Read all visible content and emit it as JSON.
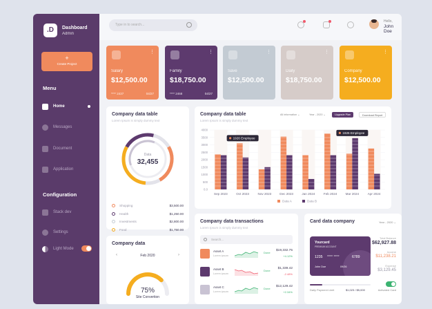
{
  "sidebar": {
    "logo_letter": ".D",
    "title": "Dashboard",
    "subtitle": "Admin",
    "create_plus": "+",
    "create_label": "Create Project",
    "menu_title": "Menu",
    "items": [
      {
        "label": "Home",
        "icon": "home-icon",
        "active": true
      },
      {
        "label": "Messages",
        "icon": "messages-icon"
      },
      {
        "label": "Document",
        "icon": "document-icon"
      },
      {
        "label": "Application",
        "icon": "application-icon"
      }
    ],
    "config_title": "Configuration",
    "config_items": [
      {
        "label": "Stack dev",
        "icon": "stack-icon"
      },
      {
        "label": "Settings",
        "icon": "settings-icon"
      },
      {
        "label": "Light Mode",
        "icon": "light-mode-icon"
      }
    ]
  },
  "topbar": {
    "search_placeholder": "Type in to search...",
    "hello": "Hello,",
    "user_name": "John Doe"
  },
  "cards": [
    {
      "name": "Salary",
      "amount": "$12,500.00",
      "number": "**** 2437",
      "expiry": "04/27",
      "color": "#f08a5d"
    },
    {
      "name": "Family",
      "amount": "$18,750.00",
      "number": "**** 2468",
      "expiry": "04/27",
      "color": "#5d3a6e"
    },
    {
      "name": "Save",
      "amount": "$12,500.00",
      "number": "",
      "expiry": "",
      "color": "#c3cbd3"
    },
    {
      "name": "Daily",
      "amount": "$18,750.00",
      "number": "",
      "expiry": "",
      "color": "#d6ccc9"
    },
    {
      "name": "Company",
      "amount": "$12,500.00",
      "number": "",
      "expiry": "",
      "color": "#f5ad1f"
    }
  ],
  "donut_panel": {
    "title": "Company data table",
    "subtitle": "Lorem Ipsum is simply dummy text",
    "center_label": "Data",
    "center_value": "32,455",
    "legend": [
      {
        "name": "Shopping",
        "value": "$3,500.00",
        "color": "#f08a5d"
      },
      {
        "name": "Health",
        "value": "$1,250.00",
        "color": "#5d3a6e"
      },
      {
        "name": "Investments",
        "value": "$2,800.00",
        "color": "#c3cbd3"
      },
      {
        "name": "Food",
        "value": "$1,750.00",
        "color": "#f5ad1f"
      },
      {
        "name": "Other",
        "value": "$1,000.00",
        "color": "#d6ccc9"
      }
    ]
  },
  "bar_panel": {
    "title": "Company data table",
    "subtitle": "Lorem Ipsum is simply dummy text",
    "filter_all": "All information",
    "filter_year": "Year - 2020",
    "upgrade_label": "Upgrade Plan",
    "download_label": "Download Report",
    "tooltip": "1926 Employee"
  },
  "chart_data": {
    "type": "bar",
    "categories": [
      "Sep 2023",
      "Oct 2023",
      "Nov 2023",
      "Dec 2023",
      "Jan 2024",
      "Feb 2024",
      "Mar 2024",
      "Apr 2024"
    ],
    "y_ticks": [
      "4000",
      "3500",
      "3000",
      "2500",
      "2000",
      "1500",
      "1000",
      "500",
      "0.0"
    ],
    "ylim": [
      0,
      4000
    ],
    "series": [
      {
        "name": "Data A",
        "color": "#f08a5d",
        "values": [
          2350,
          3100,
          1350,
          3550,
          2300,
          3750,
          2400,
          2750
        ]
      },
      {
        "name": "Data B",
        "color": "#5d3a6e",
        "values": [
          2300,
          2150,
          1500,
          2300,
          700,
          2300,
          3450,
          1050
        ]
      }
    ],
    "tooltips": [
      "1926 Employee",
      "1926 Employee"
    ],
    "legend_position": "bottom",
    "grid": true
  },
  "site_panel": {
    "title": "Company data",
    "month": "Feb 2020",
    "percent": "75%",
    "percent_value": 0.75,
    "caption": "Site Convertion"
  },
  "tx_panel": {
    "title": "Company data transactions",
    "subtitle": "Lorem Ipsum is simply dummy text",
    "search_placeholder": "Search...",
    "rows": [
      {
        "name": "Asset A",
        "sub": "Lorem ipsum",
        "status": "Done",
        "value": "$19,332.75",
        "pct": "+4.12%",
        "trend": "up"
      },
      {
        "name": "Asset B",
        "sub": "Lorem ipsum",
        "status": "Done",
        "value": "$1,339.42",
        "pct": "-2.48%",
        "trend": "down"
      },
      {
        "name": "Asset C",
        "sub": "Lorem ipsum",
        "status": "Done",
        "value": "$12,129.42",
        "pct": "+2.34%",
        "trend": "up"
      }
    ]
  },
  "card_panel": {
    "title": "Card data company",
    "year": "Year - 2020",
    "card_brand": "Yourcard",
    "card_tier": "PREMIUM ACCOUNT",
    "card_first": "1235",
    "card_dots": "**** ****",
    "card_last": "6789",
    "card_holder": "John Doe",
    "card_exp": "09/26",
    "total_label": "Total Balance",
    "total": "$62,927.88",
    "income_label": "Income",
    "income": "$11,238.21",
    "expense_label": "Expense",
    "expense": "$3,129.45",
    "limit_label": "Daily Payment Limit",
    "limit_value": "$1,023 / $5,000",
    "limit_fraction": 0.2,
    "activated_label": "Activated Card"
  }
}
